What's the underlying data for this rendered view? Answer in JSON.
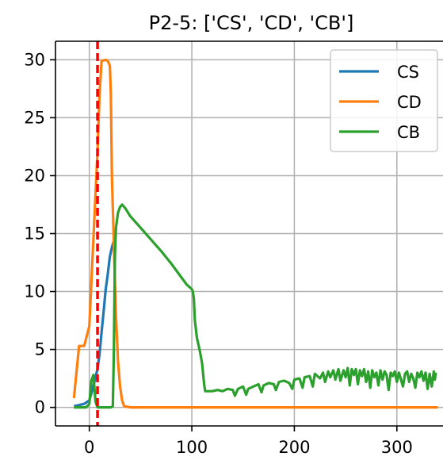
{
  "chart_data": {
    "type": "line",
    "title": "P2-5: ['CS', 'CD', 'CB']",
    "xlabel": "",
    "ylabel": "",
    "xlim": [
      -33,
      345
    ],
    "ylim": [
      -1.6,
      31.6
    ],
    "x_ticks": [
      0,
      100,
      200,
      300
    ],
    "y_ticks": [
      0,
      5,
      10,
      15,
      20,
      25,
      30
    ],
    "grid": true,
    "legend_position": "top-right",
    "vline": {
      "x": 8,
      "color": "#ff0000",
      "style": "dashed"
    },
    "series": [
      {
        "name": "CS",
        "color": "#1f77b4",
        "points": [
          [
            -15,
            0.1
          ],
          [
            -5,
            0.3
          ],
          [
            0,
            0.6
          ],
          [
            3,
            1.5
          ],
          [
            6,
            2.6
          ],
          [
            8,
            3.3
          ],
          [
            10,
            4.6
          ],
          [
            12,
            6.5
          ],
          [
            14,
            8.3
          ],
          [
            16,
            10.2
          ],
          [
            18,
            11.5
          ],
          [
            20,
            13.0
          ],
          [
            22,
            13.8
          ],
          [
            24,
            14.4
          ]
        ]
      },
      {
        "name": "CD",
        "color": "#ff7f0e",
        "points": [
          [
            -15,
            0.8
          ],
          [
            -10,
            5.3
          ],
          [
            -5,
            5.3
          ],
          [
            0,
            7.0
          ],
          [
            5,
            16.5
          ],
          [
            8,
            22.0
          ],
          [
            10,
            27.0
          ],
          [
            12,
            29.9
          ],
          [
            16,
            30.0
          ],
          [
            18,
            29.9
          ],
          [
            20,
            29.5
          ],
          [
            21,
            27.0
          ],
          [
            22,
            20.0
          ],
          [
            24,
            14.0
          ],
          [
            26,
            8.0
          ],
          [
            28,
            4.0
          ],
          [
            30,
            1.8
          ],
          [
            32,
            0.6
          ],
          [
            34,
            0.1
          ],
          [
            40,
            0
          ],
          [
            340,
            0
          ]
        ]
      },
      {
        "name": "CB",
        "color": "#2ca02c",
        "points": [
          [
            -15,
            0
          ],
          [
            -3,
            0
          ],
          [
            0,
            0.3
          ],
          [
            2,
            2.3
          ],
          [
            4,
            2.8
          ],
          [
            6,
            0.5
          ],
          [
            8,
            0
          ],
          [
            10,
            0
          ],
          [
            14,
            0
          ],
          [
            18,
            0
          ],
          [
            21,
            0
          ],
          [
            23,
            0.1
          ],
          [
            24,
            5.0
          ],
          [
            25,
            13.0
          ],
          [
            26,
            15.5
          ],
          [
            28,
            16.8
          ],
          [
            30,
            17.3
          ],
          [
            32,
            17.5
          ],
          [
            35,
            17.2
          ],
          [
            40,
            16.5
          ],
          [
            50,
            15.5
          ],
          [
            60,
            14.5
          ],
          [
            70,
            13.5
          ],
          [
            80,
            12.4
          ],
          [
            90,
            11.2
          ],
          [
            95,
            10.6
          ],
          [
            100,
            10.2
          ],
          [
            101,
            10.0
          ],
          [
            102,
            9.4
          ],
          [
            103,
            7.5
          ],
          [
            105,
            6.0
          ],
          [
            108,
            4.8
          ],
          [
            110,
            3.8
          ],
          [
            112,
            2.0
          ],
          [
            113,
            1.4
          ],
          [
            120,
            1.4
          ],
          [
            125,
            1.5
          ],
          [
            130,
            1.4
          ],
          [
            135,
            1.6
          ],
          [
            140,
            1.5
          ],
          [
            142,
            1.0
          ],
          [
            145,
            1.6
          ],
          [
            150,
            1.8
          ],
          [
            153,
            1.1
          ],
          [
            155,
            1.6
          ],
          [
            160,
            1.8
          ],
          [
            165,
            2.0
          ],
          [
            168,
            1.3
          ],
          [
            170,
            1.9
          ],
          [
            175,
            2.1
          ],
          [
            180,
            2.0
          ],
          [
            182,
            1.5
          ],
          [
            185,
            2.2
          ],
          [
            190,
            2.3
          ],
          [
            195,
            2.1
          ],
          [
            198,
            1.6
          ],
          [
            200,
            2.4
          ],
          [
            205,
            2.5
          ],
          [
            208,
            1.7
          ],
          [
            210,
            2.6
          ],
          [
            215,
            2.7
          ],
          [
            218,
            1.8
          ],
          [
            220,
            2.9
          ],
          [
            225,
            2.5
          ],
          [
            228,
            3.0
          ],
          [
            230,
            2.2
          ],
          [
            233,
            3.1
          ],
          [
            235,
            2.6
          ],
          [
            238,
            3.2
          ],
          [
            240,
            2.4
          ],
          [
            243,
            3.3
          ],
          [
            245,
            2.3
          ],
          [
            248,
            3.2
          ],
          [
            250,
            2.6
          ],
          [
            252,
            3.4
          ],
          [
            254,
            1.9
          ],
          [
            256,
            3.3
          ],
          [
            258,
            2.8
          ],
          [
            260,
            3.3
          ],
          [
            262,
            2.0
          ],
          [
            264,
            3.2
          ],
          [
            266,
            2.7
          ],
          [
            268,
            3.3
          ],
          [
            270,
            2.2
          ],
          [
            272,
            3.1
          ],
          [
            274,
            1.7
          ],
          [
            276,
            3.2
          ],
          [
            278,
            2.6
          ],
          [
            280,
            3.0
          ],
          [
            282,
            1.9
          ],
          [
            284,
            3.2
          ],
          [
            286,
            2.4
          ],
          [
            288,
            3.1
          ],
          [
            290,
            2.8
          ],
          [
            292,
            1.5
          ],
          [
            294,
            3.0
          ],
          [
            296,
            2.7
          ],
          [
            298,
            3.1
          ],
          [
            300,
            2.2
          ],
          [
            302,
            3.0
          ],
          [
            304,
            2.4
          ],
          [
            306,
            1.8
          ],
          [
            308,
            2.9
          ],
          [
            310,
            3.1
          ],
          [
            312,
            2.2
          ],
          [
            314,
            2.9
          ],
          [
            316,
            2.5
          ],
          [
            318,
            1.7
          ],
          [
            320,
            3.0
          ],
          [
            322,
            2.6
          ],
          [
            324,
            3.1
          ],
          [
            326,
            2.3
          ],
          [
            328,
            3.0
          ],
          [
            330,
            1.6
          ],
          [
            332,
            2.9
          ],
          [
            334,
            1.8
          ],
          [
            336,
            3.1
          ],
          [
            337,
            2.4
          ],
          [
            338,
            3.0
          ]
        ]
      }
    ]
  }
}
